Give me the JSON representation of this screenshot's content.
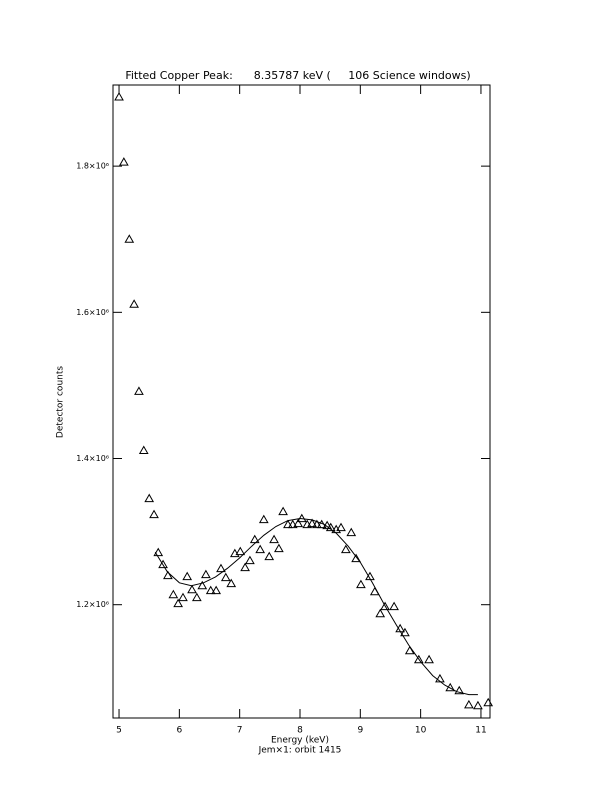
{
  "chart_data": {
    "type": "scatter",
    "title": "Fitted Copper Peak:      8.35787 keV (     106 Science windows)",
    "xlabel": "Energy (keV)",
    "ylabel": "Detector counts",
    "footer": "Jem×1: orbit 1415",
    "color": "#000000",
    "xlim": [
      4.9,
      11.15
    ],
    "ylim": [
      1045000,
      1911000
    ],
    "xticks": [
      5,
      6,
      7,
      8,
      9,
      10,
      11
    ],
    "yticks": [
      {
        "value": 1200000,
        "label": "1.2×10⁶"
      },
      {
        "value": 1400000,
        "label": "1.4×10⁶"
      },
      {
        "value": 1600000,
        "label": "1.6×10⁶"
      },
      {
        "value": 1800000,
        "label": "1.8×10⁶"
      }
    ],
    "series": [
      {
        "marker": "triangle",
        "x": [
          5.0,
          5.08,
          5.17,
          5.25,
          5.33,
          5.41,
          5.5,
          5.58,
          5.65,
          5.73,
          5.81,
          5.9,
          5.98,
          6.06,
          6.13,
          6.21,
          6.29,
          6.38,
          6.44,
          6.52,
          6.61,
          6.69,
          6.77,
          6.86,
          6.92,
          7.01,
          7.09,
          7.17,
          7.25,
          7.34,
          7.4,
          7.49,
          7.57,
          7.65,
          7.72,
          7.8,
          7.88,
          7.97,
          8.03,
          8.12,
          8.2,
          8.28,
          8.36,
          8.45,
          8.51,
          8.6,
          8.68,
          8.76,
          8.85,
          8.93,
          9.01,
          9.16,
          9.24,
          9.33,
          9.41,
          9.56,
          9.66,
          9.74,
          9.82,
          9.97,
          10.14,
          10.32,
          10.49,
          10.64,
          10.8,
          10.95,
          11.12
        ],
        "values": [
          1894600,
          1805500,
          1700000,
          1611000,
          1491800,
          1411000,
          1345200,
          1323300,
          1271200,
          1254800,
          1239700,
          1213700,
          1201400,
          1209600,
          1238400,
          1220500,
          1209600,
          1226000,
          1241100,
          1219200,
          1219200,
          1249300,
          1237000,
          1228800,
          1269900,
          1272600,
          1250700,
          1260300,
          1289000,
          1275300,
          1316400,
          1265800,
          1289000,
          1276700,
          1327400,
          1309600,
          1309600,
          1311000,
          1317800,
          1309600,
          1311000,
          1309600,
          1309600,
          1308200,
          1305500,
          1302700,
          1305500,
          1275300,
          1298600,
          1263000,
          1227400,
          1238400,
          1217800,
          1187700,
          1197300,
          1197300,
          1167100,
          1161600,
          1137000,
          1124700,
          1124700,
          1098600,
          1086300,
          1082200,
          1063000,
          1061700,
          1065800
        ]
      },
      {
        "marker": "line",
        "x": [
          5.6,
          5.8,
          6.0,
          6.2,
          6.4,
          6.6,
          6.8,
          7.0,
          7.2,
          7.4,
          7.6,
          7.8,
          8.0,
          8.2,
          8.4,
          8.6,
          8.8,
          9.0,
          9.2,
          9.4,
          9.6,
          9.8,
          10.0,
          10.2,
          10.4,
          10.6,
          10.8,
          10.95
        ],
        "values": [
          1272000,
          1245000,
          1230000,
          1226000,
          1230000,
          1238000,
          1250000,
          1264000,
          1280000,
          1295000,
          1307000,
          1315000,
          1318000,
          1316000,
          1310000,
          1298000,
          1280000,
          1258000,
          1230000,
          1200000,
          1172000,
          1145000,
          1122000,
          1103000,
          1090000,
          1081000,
          1077000,
          1077000
        ]
      }
    ]
  }
}
